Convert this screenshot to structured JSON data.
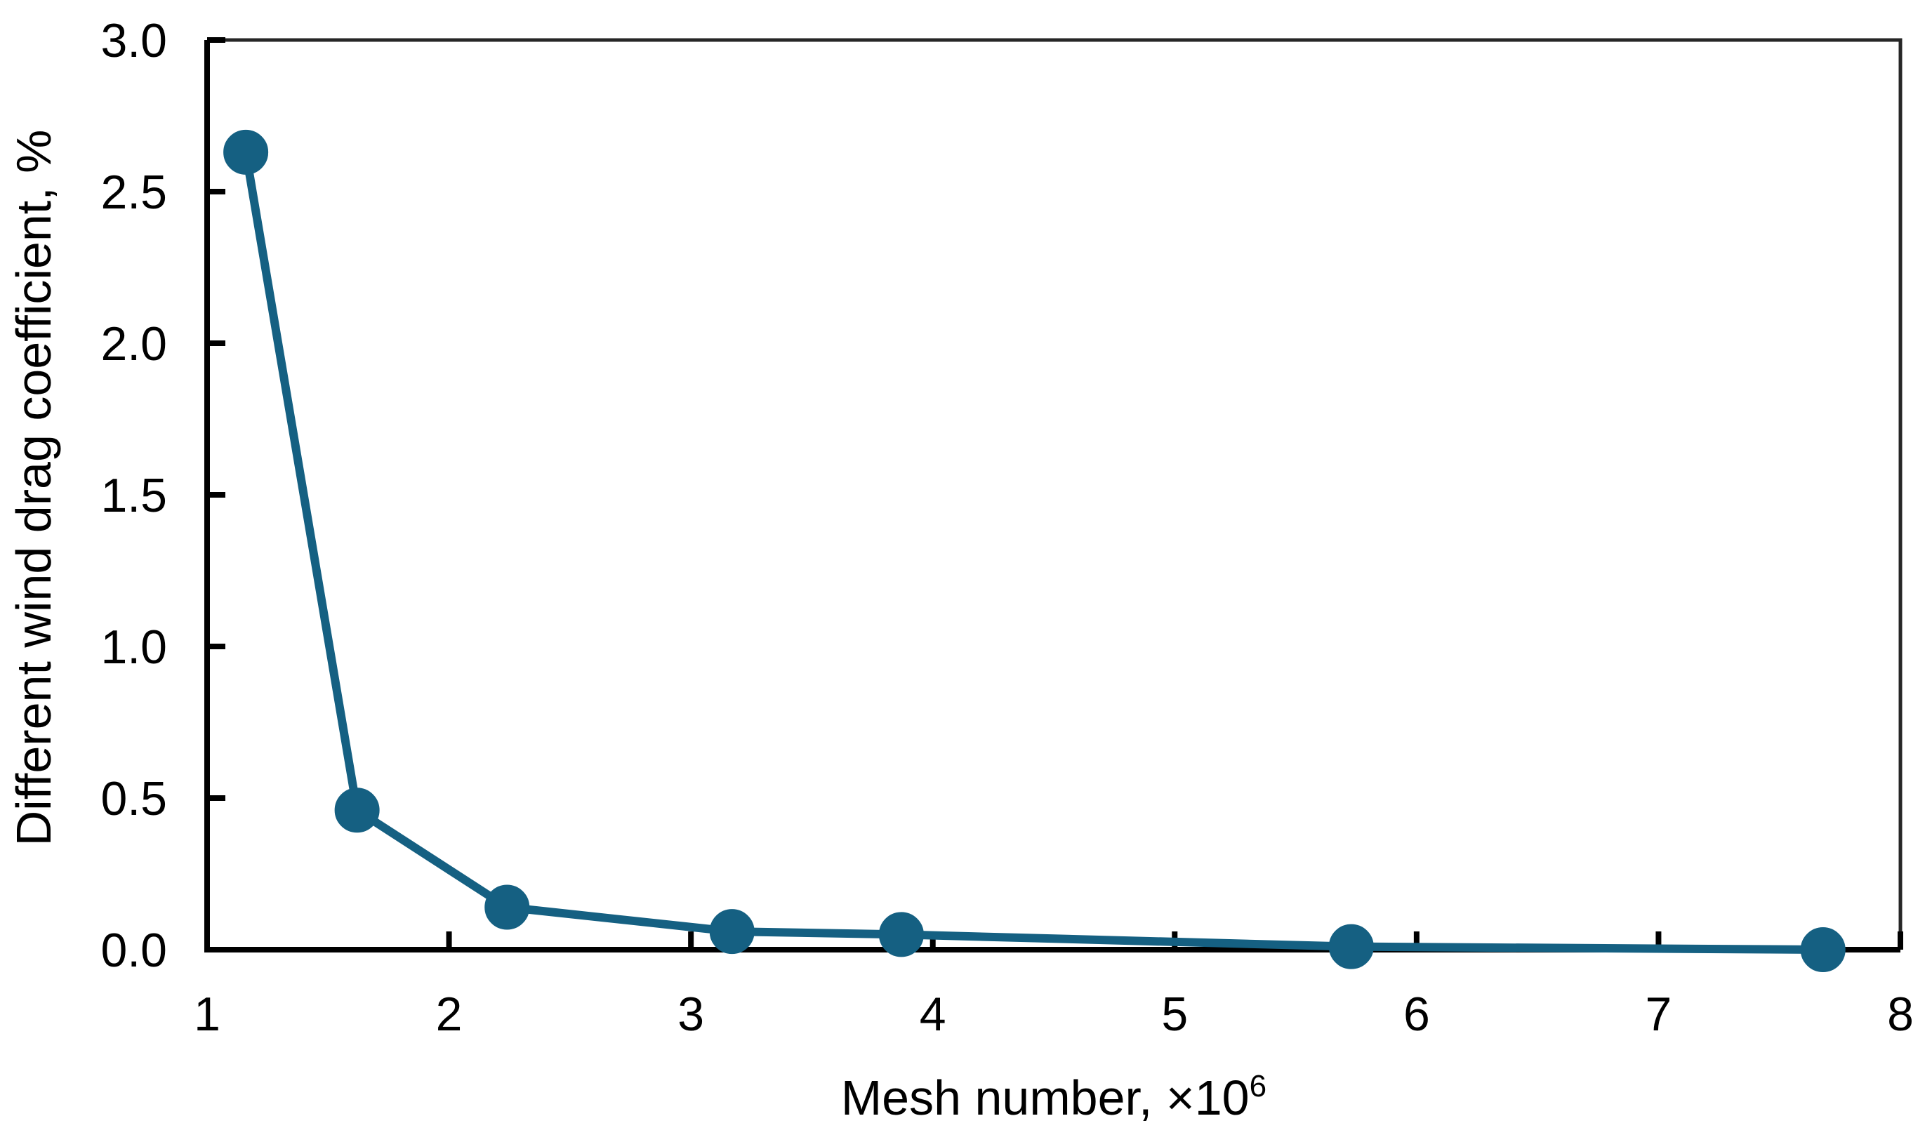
{
  "chart_data": {
    "type": "line",
    "title": "",
    "xlabel": "Mesh number, ×10⁶",
    "xlabel_base": "Mesh number, ×10",
    "xlabel_exponent": "6",
    "ylabel": "Different wind drag coefficient, %",
    "x": [
      1.16,
      1.62,
      2.24,
      3.17,
      3.87,
      5.73,
      7.68
    ],
    "y": [
      2.63,
      0.46,
      0.14,
      0.06,
      0.05,
      0.01,
      0.0
    ],
    "points": [
      {
        "x": 1.16,
        "y": 2.63
      },
      {
        "x": 1.62,
        "y": 0.46
      },
      {
        "x": 2.24,
        "y": 0.14
      },
      {
        "x": 3.17,
        "y": 0.06
      },
      {
        "x": 3.87,
        "y": 0.05
      },
      {
        "x": 5.73,
        "y": 0.01
      },
      {
        "x": 7.68,
        "y": 0.0
      }
    ],
    "xlim": [
      1,
      8
    ],
    "ylim": [
      0,
      3
    ],
    "x_tick_values": [
      1,
      2,
      3,
      4,
      5,
      6,
      7,
      8
    ],
    "x_tick_labels": [
      "1",
      "2",
      "3",
      "4",
      "5",
      "6",
      "7",
      "8"
    ],
    "y_tick_values": [
      0,
      0.5,
      1,
      1.5,
      2,
      2.5,
      3
    ],
    "y_tick_labels": [
      "0.0",
      "0.5",
      "1.0",
      "1.5",
      "2.0",
      "2.5",
      "3.0"
    ],
    "grid": false,
    "legend_position": "none",
    "marker": "circle",
    "colors": {
      "series": "#156082",
      "axis": "#000000",
      "plot_border": "#262626",
      "text": "#000000",
      "background": "#ffffff"
    }
  }
}
